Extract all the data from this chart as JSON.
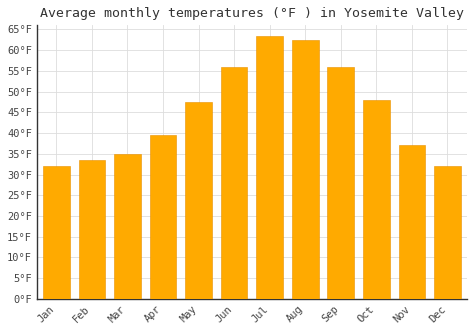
{
  "title": "Average monthly temperatures (°F ) in Yosemite Valley",
  "months": [
    "Jan",
    "Feb",
    "Mar",
    "Apr",
    "May",
    "Jun",
    "Jul",
    "Aug",
    "Sep",
    "Oct",
    "Nov",
    "Dec"
  ],
  "values": [
    32,
    33.5,
    35,
    39.5,
    47.5,
    56,
    63.5,
    62.5,
    56,
    48,
    37,
    32
  ],
  "bar_color": "#FFAA00",
  "bar_edge_color": "#E89000",
  "ylim_max": 65,
  "ytick_step": 5,
  "background_color": "#ffffff",
  "plot_bg_color": "#ffffff",
  "grid_color": "#dddddd",
  "title_fontsize": 9.5,
  "tick_fontsize": 7.5,
  "left_spine_color": "#333333"
}
